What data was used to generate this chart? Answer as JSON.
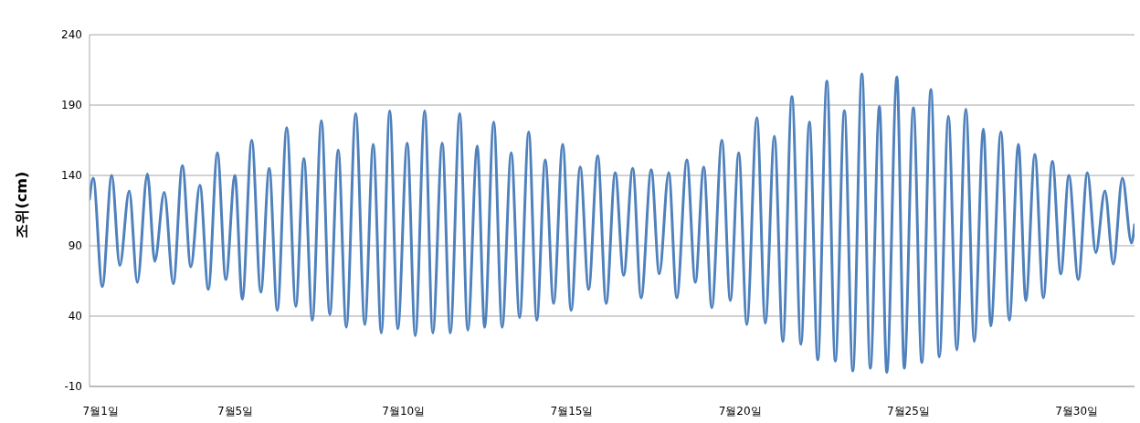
{
  "chart_data": {
    "type": "line",
    "ylabel": "조위(cm)",
    "xlim": [
      "--06-30T16:05",
      "--07-31T17:17"
    ],
    "xticks": [
      {
        "value": "--07-01",
        "label": "7월1일"
      },
      {
        "value": "--07-05",
        "label": "7월5일"
      },
      {
        "value": "--07-10",
        "label": "7월10일"
      },
      {
        "value": "--07-15",
        "label": "7월15일"
      },
      {
        "value": "--07-20",
        "label": "7월20일"
      },
      {
        "value": "--07-25",
        "label": "7월25일"
      },
      {
        "value": "--07-30",
        "label": "7월30일"
      }
    ],
    "ylim": [
      -10,
      240
    ],
    "yticks": [
      -10,
      40,
      90,
      140,
      190,
      240
    ],
    "grid": "y",
    "legend": false,
    "marker": "none",
    "line_style": "solid",
    "series": [
      {
        "color": "#4f81bd",
        "x": [
          "--06-30T16:05",
          "--06-30T18:43",
          "--07-01T01:12",
          "--07-01T07:55",
          "--07-01T13:41",
          "--07-01T20:24",
          "--07-02T02:10",
          "--07-02T09:22",
          "--07-02T14:38",
          "--07-02T21:22",
          "--07-03T03:50",
          "--07-03T10:19",
          "--07-03T16:19",
          "--07-03T22:48",
          "--07-04T04:48",
          "--07-04T11:17",
          "--07-04T17:17",
          "--07-04T23:46",
          "--07-05T05:02",
          "--07-05T11:46",
          "--07-05T18:14",
          "--07-06T00:14",
          "--07-06T06:00",
          "--07-06T12:43",
          "--07-06T19:12",
          "--07-07T00:58",
          "--07-07T06:58",
          "--07-07T13:26",
          "--07-07T19:26",
          "--07-08T01:26",
          "--07-08T07:12",
          "--07-08T13:55",
          "--07-08T20:24",
          "--07-09T02:24",
          "--07-09T08:10",
          "--07-09T14:10",
          "--07-09T19:55",
          "--07-10T02:38",
          "--07-10T08:24",
          "--07-10T15:07",
          "--07-10T20:53",
          "--07-11T03:36",
          "--07-11T09:22",
          "--07-11T16:05",
          "--07-11T21:50",
          "--07-12T04:34",
          "--07-12T09:50",
          "--07-12T16:19",
          "--07-12T22:19",
          "--07-13T04:48",
          "--07-13T10:48",
          "--07-13T17:17",
          "--07-13T23:02",
          "--07-14T05:02",
          "--07-14T11:02",
          "--07-14T17:31",
          "--07-14T23:31",
          "--07-15T06:00",
          "--07-15T12:00",
          "--07-15T18:29",
          "--07-16T00:29",
          "--07-16T06:58",
          "--07-16T12:58",
          "--07-16T19:26",
          "--07-17T01:26",
          "--07-17T08:38",
          "--07-17T14:24",
          "--07-17T21:07",
          "--07-18T02:53",
          "--07-18T10:05",
          "--07-18T16:05",
          "--07-18T22:05",
          "--07-19T03:50",
          "--07-19T11:02",
          "--07-19T17:02",
          "--07-19T23:02",
          "--07-20T04:48",
          "--07-20T12:00",
          "--07-20T18:00",
          "--07-21T00:29",
          "--07-21T06:29",
          "--07-21T12:58",
          "--07-21T19:26",
          "--07-22T01:26",
          "--07-22T07:26",
          "--07-22T13:55",
          "--07-22T19:55",
          "--07-23T02:24",
          "--07-23T08:24",
          "--07-23T14:53",
          "--07-23T20:53",
          "--07-24T03:22",
          "--07-24T08:38",
          "--07-24T15:50",
          "--07-24T21:07",
          "--07-25T03:36",
          "--07-25T09:36",
          "--07-25T16:05",
          "--07-25T22:05",
          "--07-26T04:34",
          "--07-26T10:34",
          "--07-26T17:02",
          "--07-26T23:02",
          "--07-27T05:31",
          "--07-27T10:48",
          "--07-27T18:00",
          "--07-28T00:00",
          "--07-28T06:29",
          "--07-28T11:46",
          "--07-28T18:14",
          "--07-29T00:14",
          "--07-29T06:43",
          "--07-29T12:43",
          "--07-29T18:29",
          "--07-30T01:12",
          "--07-30T07:41",
          "--07-30T13:41",
          "--07-30T20:10",
          "--07-31T02:10",
          "--07-31T08:38",
          "--07-31T15:07",
          "--07-31T17:17"
        ],
        "values": [
          123,
          138,
          61,
          140,
          76,
          129,
          64,
          141,
          79,
          128,
          63,
          147,
          75,
          133,
          59,
          156,
          66,
          140,
          52,
          165,
          57,
          145,
          44,
          174,
          47,
          152,
          37,
          179,
          41,
          158,
          32,
          184,
          34,
          162,
          28,
          186,
          31,
          163,
          26,
          186,
          28,
          163,
          28,
          184,
          30,
          161,
          32,
          178,
          32,
          156,
          39,
          171,
          37,
          151,
          49,
          162,
          44,
          146,
          59,
          154,
          49,
          142,
          69,
          145,
          53,
          144,
          70,
          142,
          53,
          151,
          64,
          146,
          46,
          165,
          51,
          156,
          34,
          181,
          35,
          168,
          22,
          196,
          20,
          178,
          9,
          207,
          8,
          186,
          1,
          212,
          3,
          189,
          0,
          210,
          3,
          188,
          7,
          201,
          11,
          182,
          16,
          187,
          22,
          173,
          33,
          171,
          37,
          162,
          51,
          155,
          53,
          150,
          70,
          140,
          66,
          142,
          85,
          129,
          77,
          138,
          92,
          105
        ]
      }
    ]
  }
}
